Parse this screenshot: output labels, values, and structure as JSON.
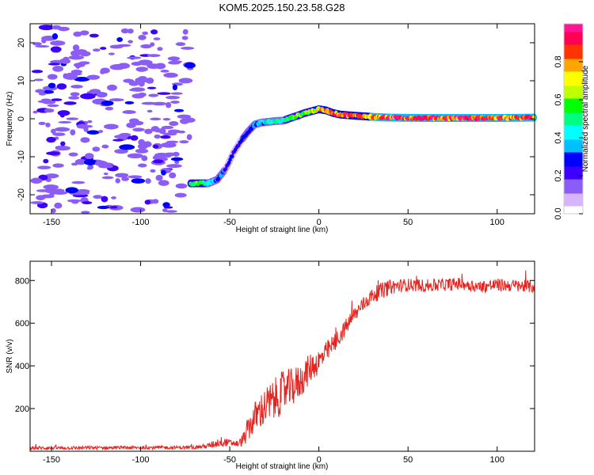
{
  "title": "KOM5.2025.150.23.58.G28",
  "chart_data": [
    {
      "type": "heatmap",
      "xlabel": "Height of straight line (km)",
      "ylabel": "Frequency (Hz)",
      "xlim": [
        -162,
        121
      ],
      "ylim": [
        -25,
        25
      ],
      "xticks": [
        -150,
        -100,
        -50,
        0,
        50,
        100
      ],
      "yticks": [
        -20,
        -10,
        0,
        10,
        20
      ],
      "colorbar": {
        "label": "Normalized spectral amplitude",
        "range": [
          0,
          1
        ],
        "ticks": [
          "0.0",
          "0.2",
          "0.4",
          "0.6",
          "0.8"
        ],
        "colors": [
          "#ffffff",
          "#d8b4fe",
          "#8b5cf6",
          "#3b00ff",
          "#0000ff",
          "#00bfff",
          "#00ffff",
          "#00ff80",
          "#00ff00",
          "#bfff00",
          "#ffff00",
          "#ffa500",
          "#ff3300",
          "#ff0055",
          "#ff1493"
        ]
      },
      "ridge": {
        "x": [
          -72,
          -67,
          -62,
          -57,
          -52,
          -48,
          -44,
          -40,
          -36,
          -32,
          -28,
          -24,
          -20,
          -16,
          -12,
          -8,
          -4,
          0,
          4,
          8,
          12,
          20,
          30,
          40,
          60,
          80,
          100,
          120
        ],
        "freq": [
          -17,
          -17,
          -17,
          -16,
          -13,
          -9,
          -6,
          -3.5,
          -1.5,
          -1,
          -0.8,
          -0.6,
          -0.5,
          0.2,
          0.8,
          1.5,
          2,
          2.5,
          2.2,
          1.5,
          1.1,
          0.8,
          0.5,
          0.3,
          0.2,
          0.2,
          0.2,
          0.3
        ],
        "amp": [
          0.55,
          0.6,
          0.5,
          0.35,
          0.3,
          0.28,
          0.3,
          0.32,
          0.35,
          0.4,
          0.45,
          0.5,
          0.5,
          0.55,
          0.6,
          0.65,
          0.7,
          0.75,
          0.8,
          0.85,
          0.88,
          0.9,
          0.92,
          0.95,
          0.95,
          0.95,
          0.95,
          0.95
        ]
      },
      "noise_region_x": [
        -162,
        -72
      ]
    },
    {
      "type": "line",
      "xlabel": "Height of straight line (km)",
      "ylabel": "SNR (v/v)",
      "xlim": [
        -162,
        121
      ],
      "ylim": [
        0,
        890
      ],
      "xticks": [
        -150,
        -100,
        -50,
        0,
        50,
        100
      ],
      "yticks": [
        200,
        400,
        600,
        800
      ],
      "color": "#e8231f",
      "profile": {
        "x": [
          -162,
          -70,
          -62,
          -55,
          -50,
          -45,
          -42,
          -40,
          -35,
          -30,
          -25,
          -20,
          -15,
          -10,
          -5,
          0,
          5,
          10,
          15,
          20,
          25,
          30,
          35,
          40,
          50,
          60,
          70,
          80,
          90,
          100,
          110,
          121
        ],
        "snr": [
          15,
          18,
          25,
          45,
          40,
          35,
          60,
          100,
          170,
          210,
          240,
          280,
          300,
          330,
          390,
          420,
          470,
          520,
          580,
          640,
          690,
          730,
          750,
          770,
          780,
          775,
          780,
          785,
          770,
          780,
          775,
          770
        ],
        "noise": [
          8,
          8,
          12,
          25,
          15,
          15,
          35,
          55,
          80,
          90,
          100,
          100,
          90,
          80,
          70,
          60,
          50,
          45,
          40,
          38,
          35,
          35,
          40,
          35,
          30,
          30,
          30,
          30,
          30,
          30,
          30,
          30
        ]
      }
    }
  ]
}
